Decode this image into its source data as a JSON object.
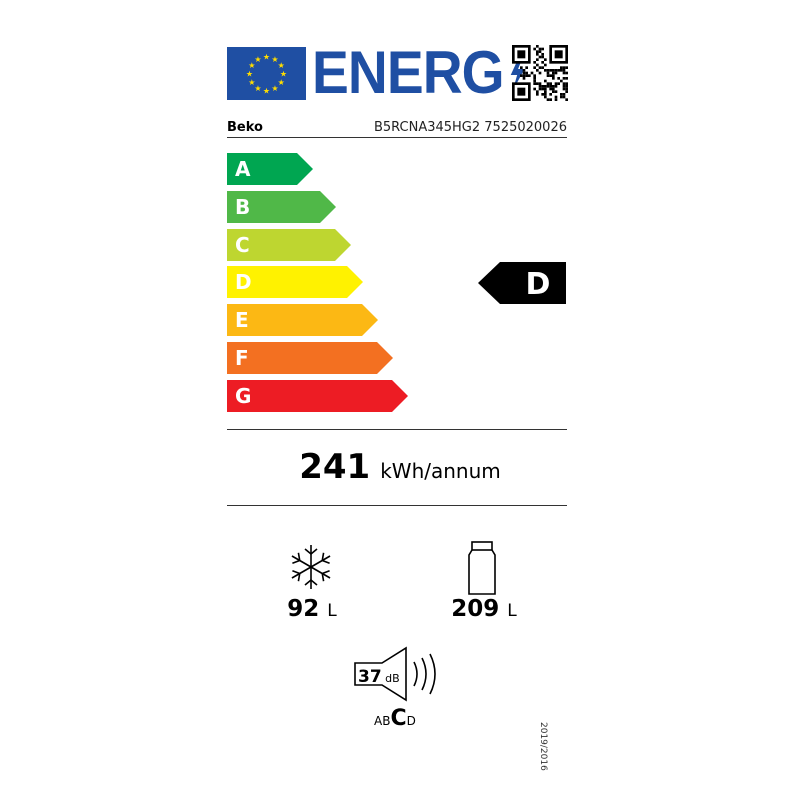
{
  "header": {
    "title": "ENERG",
    "flag_icon": "eu-flag-icon",
    "qr_icon": "qr-code-icon"
  },
  "supplier": "Beko",
  "model": "B5RCNA345HG2 7525020026",
  "scale": [
    {
      "label": "A",
      "color": "#00a651"
    },
    {
      "label": "B",
      "color": "#50b848"
    },
    {
      "label": "C",
      "color": "#bed630"
    },
    {
      "label": "D",
      "color": "#fff200"
    },
    {
      "label": "E",
      "color": "#fcb814"
    },
    {
      "label": "F",
      "color": "#f37021"
    },
    {
      "label": "G",
      "color": "#ed1c24"
    }
  ],
  "rating": "D",
  "consumption": {
    "value": "241",
    "unit": "kWh/annum"
  },
  "freezer": {
    "value": "92",
    "unit": "L",
    "icon": "snowflake-icon"
  },
  "fridge": {
    "value": "209",
    "unit": "L",
    "icon": "bottle-icon"
  },
  "noise": {
    "value": "37",
    "unit": "dB",
    "classes": [
      "A",
      "B",
      "C",
      "D"
    ],
    "class": "C",
    "icon": "speaker-icon"
  },
  "regulation": "2019/2016"
}
